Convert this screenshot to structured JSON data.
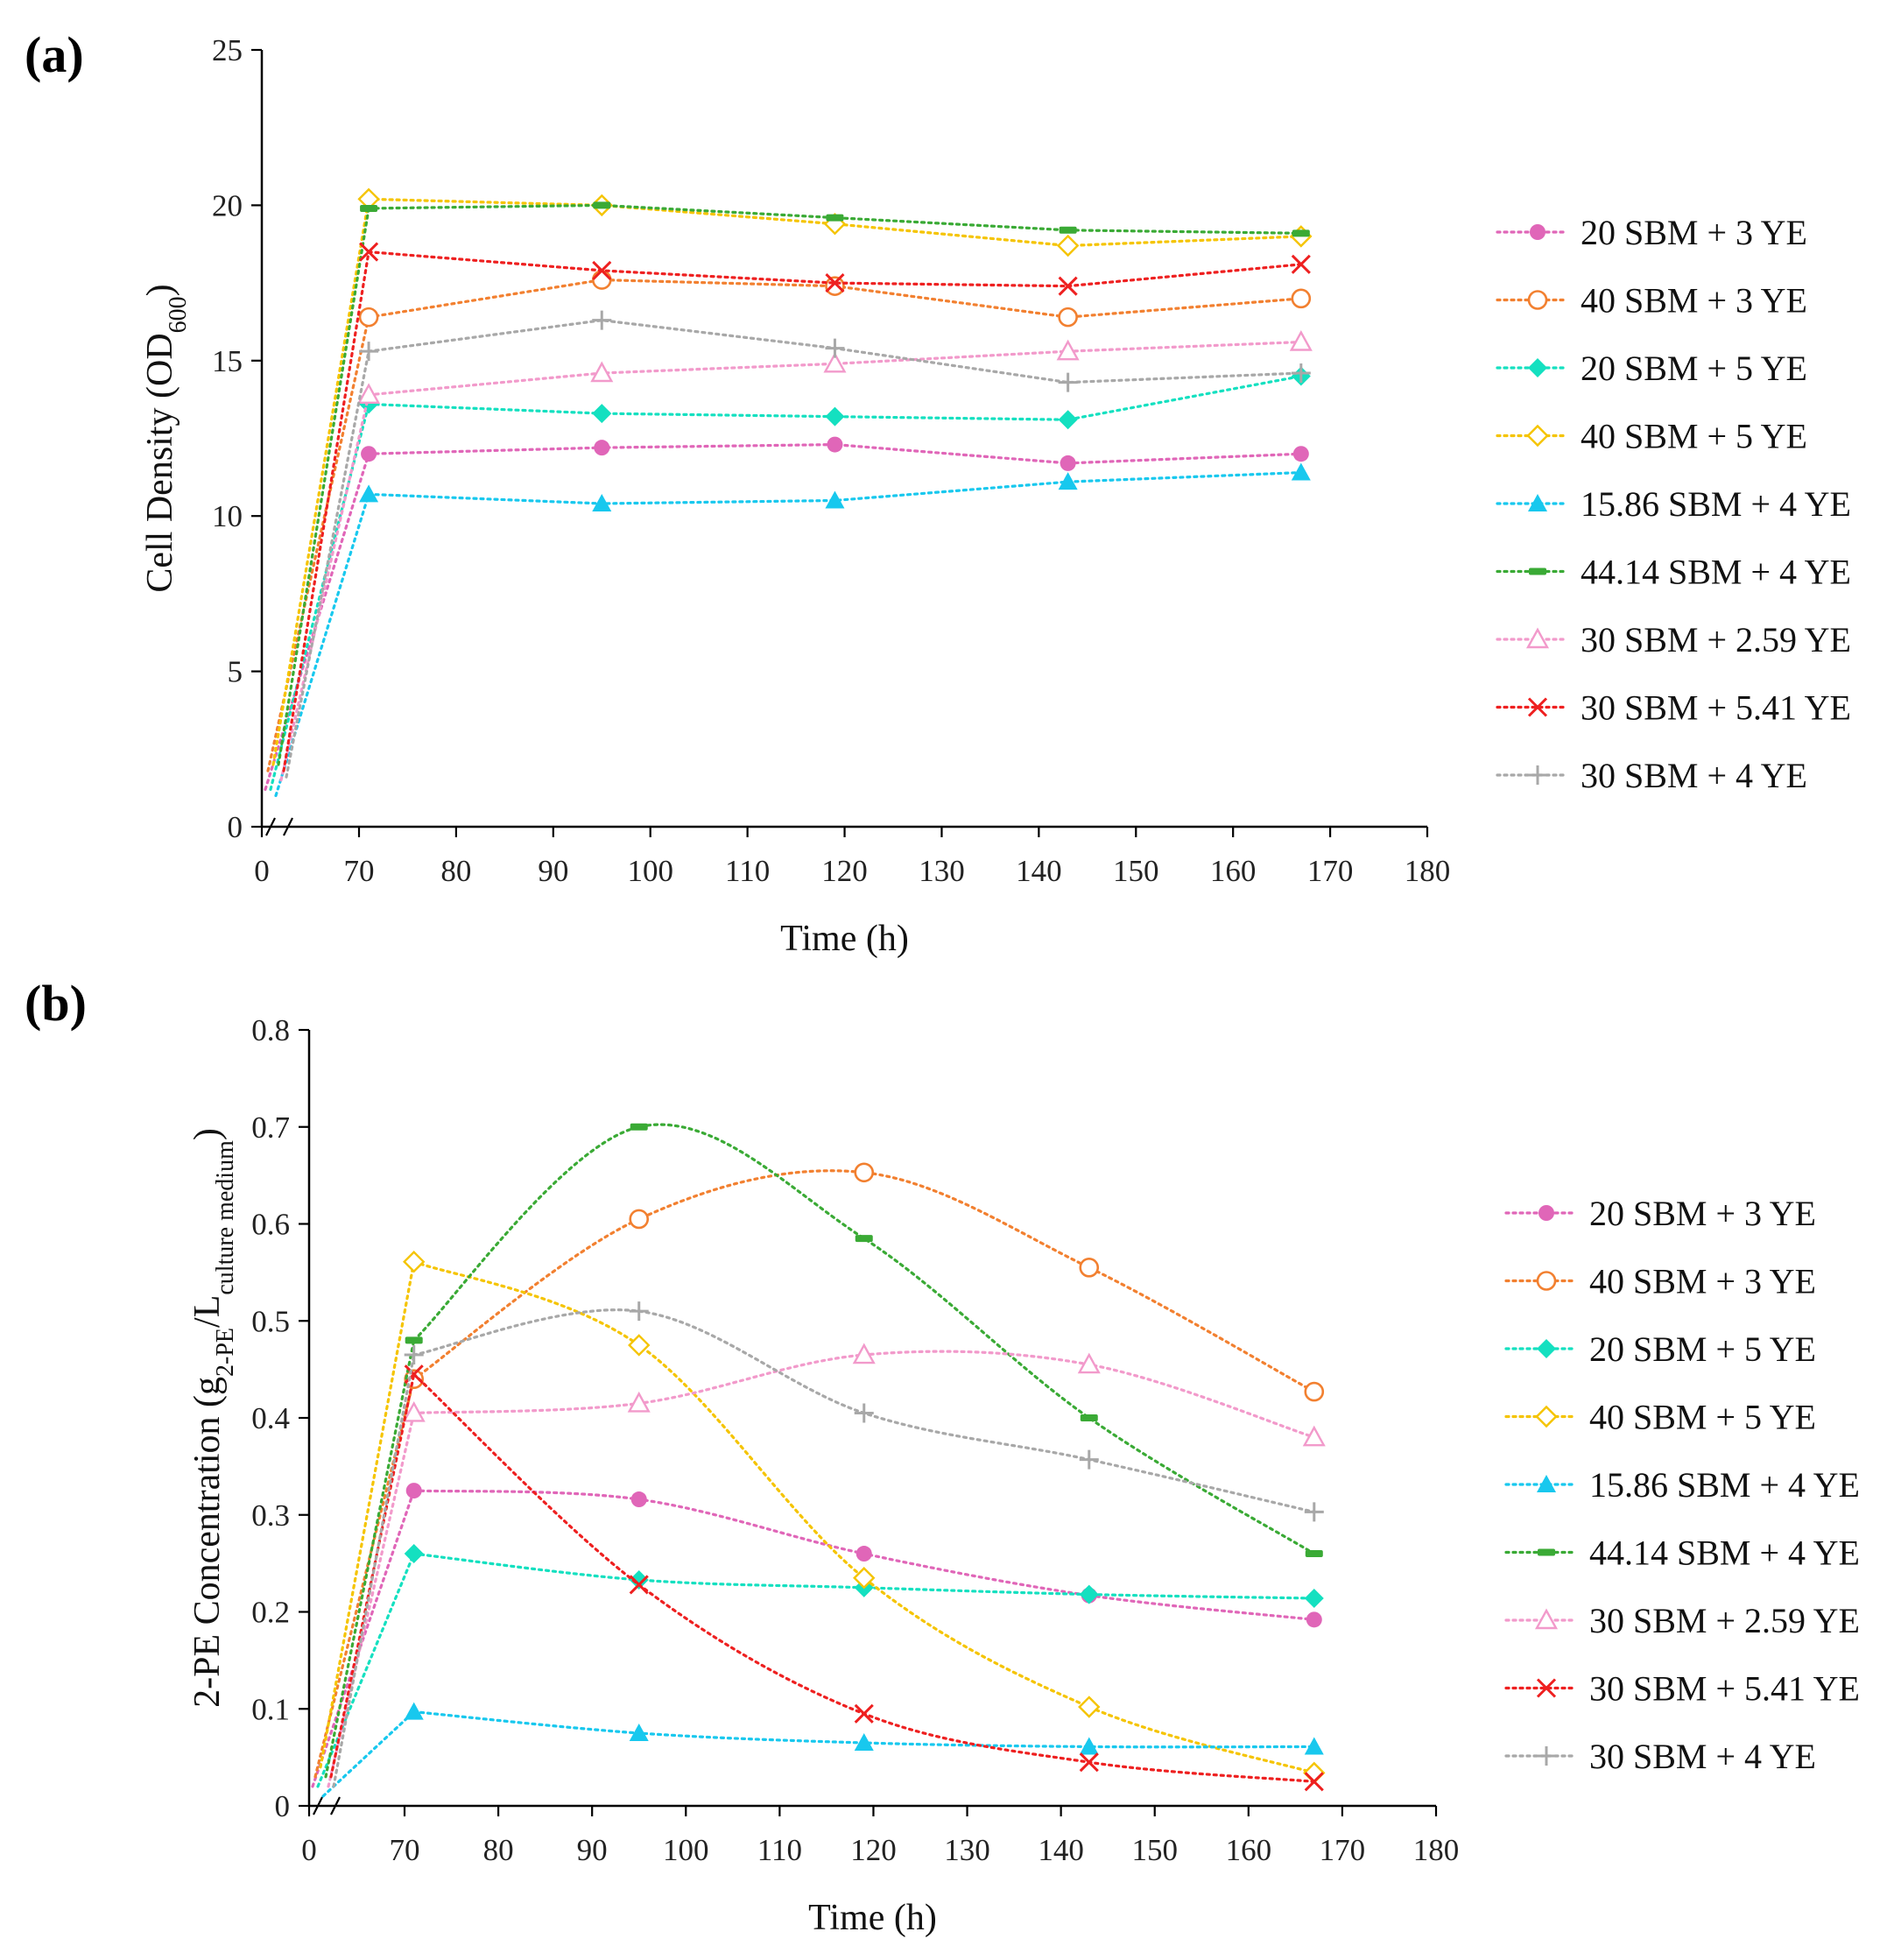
{
  "chart_data": [
    {
      "type": "line",
      "panel_label": "(a)",
      "xlabel": "Time (h)",
      "ylabel": "Cell  Density (OD",
      "ylabel_sub": "600",
      "ylabel_end": ")",
      "ylim": [
        0,
        25
      ],
      "yticks": [
        "0",
        "5",
        "10",
        "15",
        "20",
        "25"
      ],
      "xticks": [
        "0",
        "70",
        "80",
        "90",
        "100",
        "110",
        "120",
        "130",
        "140",
        "150",
        "160",
        "170",
        "180"
      ],
      "x_break": "0-70",
      "grid": false,
      "legend_position": "right",
      "x": [
        71,
        95,
        119,
        143,
        167
      ],
      "series": [
        {
          "name": "20 SBM + 3 YE",
          "color": "#e066b8",
          "marker": "circle-filled",
          "start": 1.2,
          "values": [
            12.0,
            12.2,
            12.3,
            11.7,
            12.0
          ]
        },
        {
          "name": "40 SBM + 3 YE",
          "color": "#f28030",
          "marker": "circle-open",
          "start": 1.8,
          "values": [
            16.4,
            17.6,
            17.4,
            16.4,
            17.0
          ]
        },
        {
          "name": "20 SBM + 5 YE",
          "color": "#14e0c0",
          "marker": "diamond-filled",
          "start": 1.2,
          "values": [
            13.6,
            13.3,
            13.2,
            13.1,
            14.5
          ]
        },
        {
          "name": "40 SBM + 5 YE",
          "color": "#f5c400",
          "marker": "diamond-open",
          "start": 2.0,
          "values": [
            20.2,
            20.0,
            19.4,
            18.7,
            19.0
          ]
        },
        {
          "name": "15.86 SBM + 4 YE",
          "color": "#18c8ee",
          "marker": "triangle-filled",
          "start": 1.0,
          "values": [
            10.7,
            10.4,
            10.5,
            11.1,
            11.4
          ]
        },
        {
          "name": "44.14 SBM + 4 YE",
          "color": "#3aaa35",
          "marker": "dash",
          "start": 2.0,
          "values": [
            19.9,
            20.0,
            19.6,
            19.2,
            19.1
          ]
        },
        {
          "name": "30 SBM + 2.59 YE",
          "color": "#f29acb",
          "marker": "triangle-open",
          "start": 1.5,
          "values": [
            13.9,
            14.6,
            14.9,
            15.3,
            15.6
          ]
        },
        {
          "name": "30 SBM + 5.41 YE",
          "color": "#ee2020",
          "marker": "x",
          "start": 1.8,
          "values": [
            18.5,
            17.9,
            17.5,
            17.4,
            18.1
          ]
        },
        {
          "name": "30 SBM + 4 YE",
          "color": "#a8a8a8",
          "marker": "plus",
          "start": 1.6,
          "values": [
            15.3,
            16.3,
            15.4,
            14.3,
            14.6
          ]
        }
      ]
    },
    {
      "type": "line",
      "panel_label": "(b)",
      "xlabel": "Time (h)",
      "ylabel": "2-PE Concentration (g",
      "ylabel_sub": "2-PE",
      "ylabel_mid": "/L",
      "ylabel_sub2": "culture  medium",
      "ylabel_end": ")",
      "ylim": [
        0,
        0.8
      ],
      "yticks": [
        "0",
        "0.1",
        "0.2",
        "0.3",
        "0.4",
        "0.5",
        "0.6",
        "0.7",
        "0.8"
      ],
      "xticks": [
        "0",
        "70",
        "80",
        "90",
        "100",
        "110",
        "120",
        "130",
        "140",
        "150",
        "160",
        "170",
        "180"
      ],
      "x_break": "0-70",
      "grid": false,
      "legend_position": "right",
      "x": [
        71,
        95,
        119,
        143,
        167
      ],
      "series": [
        {
          "name": "20 SBM + 3 YE",
          "color": "#e066b8",
          "marker": "circle-filled",
          "start": 0.02,
          "values": [
            0.325,
            0.316,
            0.26,
            0.217,
            0.192
          ]
        },
        {
          "name": "40 SBM + 3 YE",
          "color": "#f28030",
          "marker": "circle-open",
          "start": 0.03,
          "values": [
            0.44,
            0.605,
            0.653,
            0.555,
            0.427
          ]
        },
        {
          "name": "20 SBM + 5 YE",
          "color": "#14e0c0",
          "marker": "diamond-filled",
          "start": 0.02,
          "values": [
            0.26,
            0.233,
            0.225,
            0.218,
            0.214
          ]
        },
        {
          "name": "40 SBM + 5 YE",
          "color": "#f5c400",
          "marker": "diamond-open",
          "start": 0.04,
          "values": [
            0.561,
            0.475,
            0.235,
            0.102,
            0.034
          ]
        },
        {
          "name": "15.86 SBM + 4 YE",
          "color": "#18c8ee",
          "marker": "triangle-filled",
          "start": 0.01,
          "values": [
            0.097,
            0.075,
            0.065,
            0.061,
            0.061
          ]
        },
        {
          "name": "44.14 SBM + 4 YE",
          "color": "#3aaa35",
          "marker": "dash",
          "start": 0.03,
          "values": [
            0.48,
            0.7,
            0.585,
            0.4,
            0.26
          ]
        },
        {
          "name": "30 SBM + 2.59 YE",
          "color": "#f29acb",
          "marker": "triangle-open",
          "start": 0.02,
          "values": [
            0.405,
            0.415,
            0.465,
            0.455,
            0.38
          ]
        },
        {
          "name": "30 SBM + 5.41 YE",
          "color": "#ee2020",
          "marker": "x",
          "start": 0.03,
          "values": [
            0.445,
            0.228,
            0.095,
            0.045,
            0.025
          ]
        },
        {
          "name": "30 SBM + 4 YE",
          "color": "#a8a8a8",
          "marker": "plus",
          "start": 0.02,
          "values": [
            0.465,
            0.51,
            0.405,
            0.357,
            0.303
          ]
        }
      ]
    }
  ]
}
